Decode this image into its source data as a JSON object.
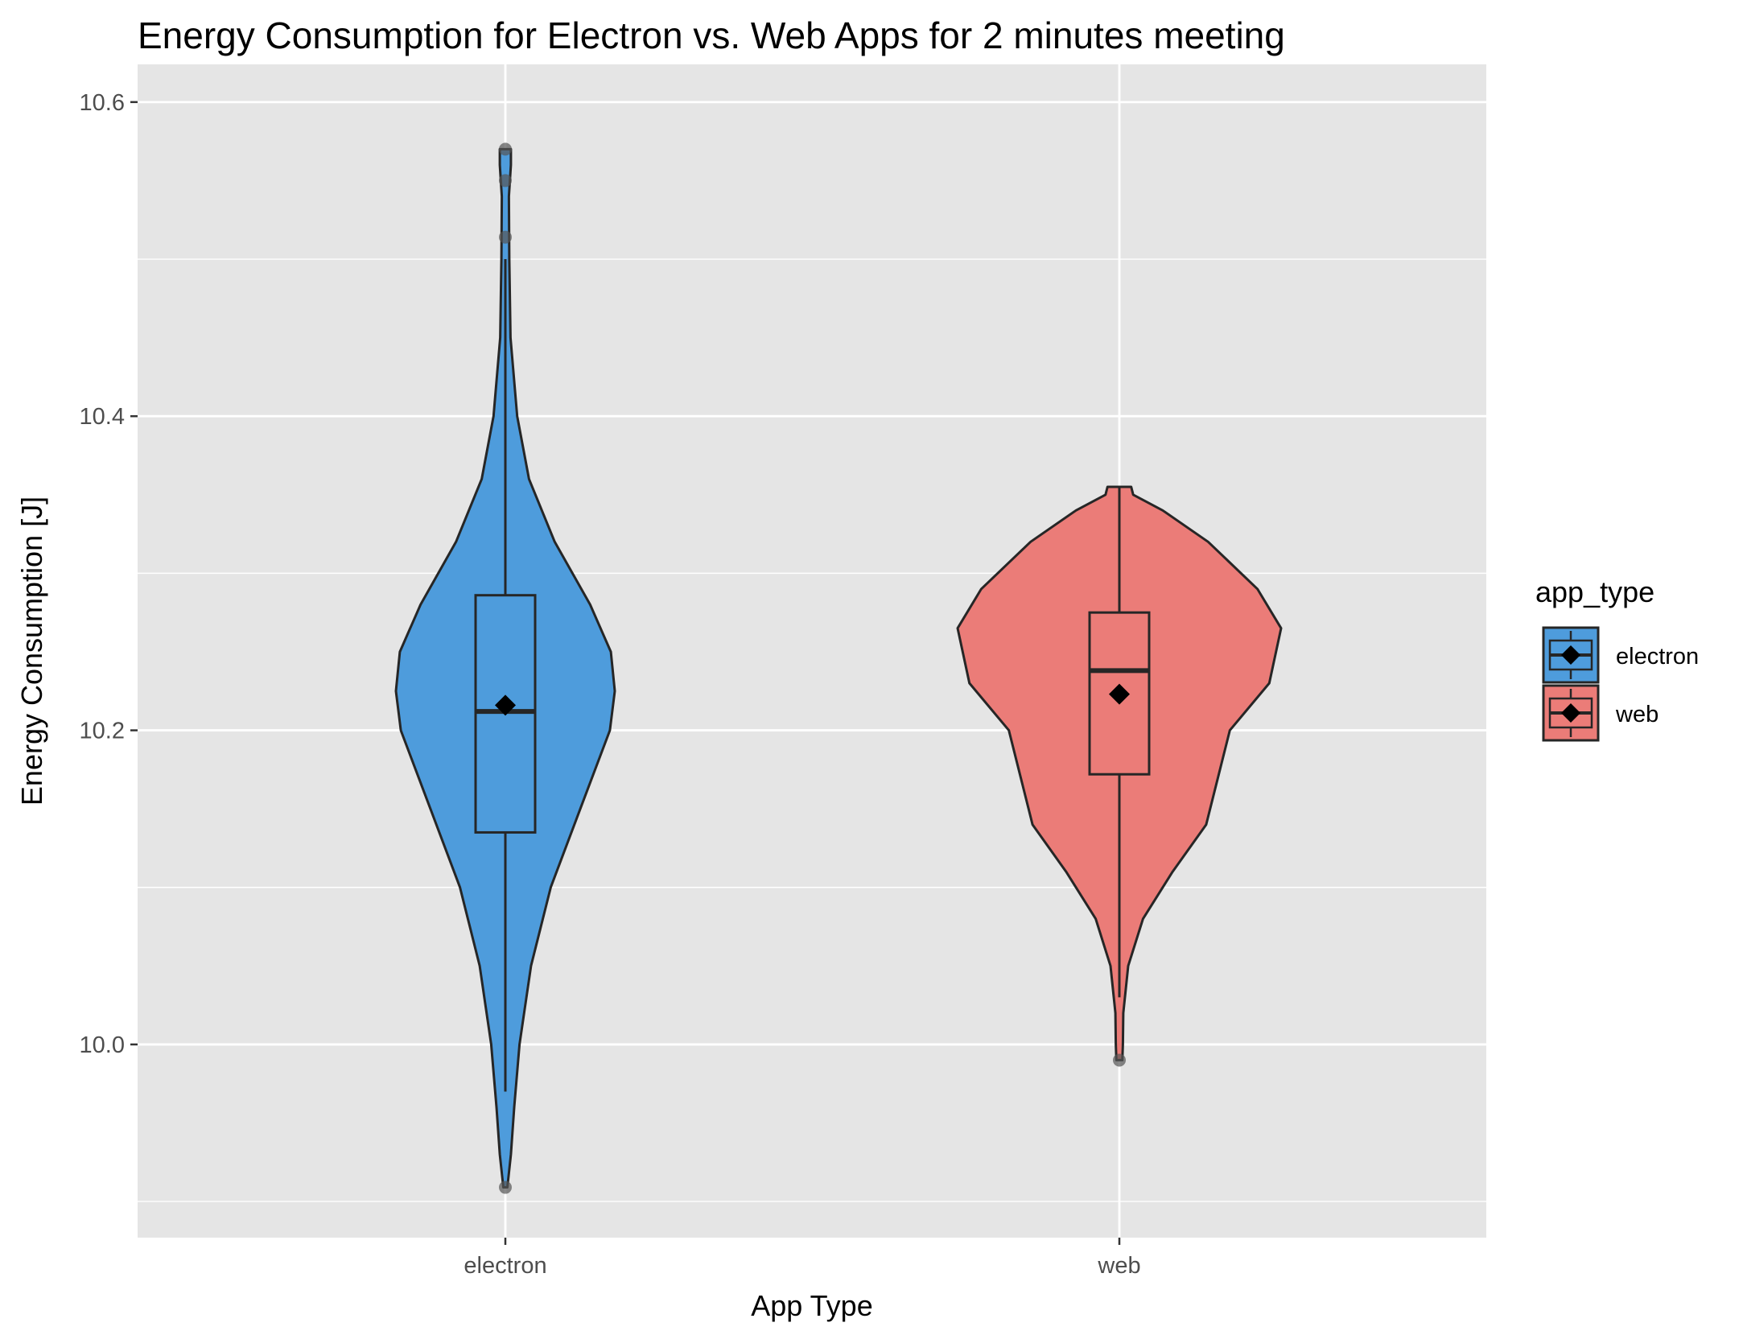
{
  "chart_data": {
    "type": "violin",
    "title": "Energy Consumption for Electron vs. Web Apps for 2 minutes meeting",
    "xlabel": "App Type",
    "ylabel": "Energy Consumption [J]",
    "categories": [
      "electron",
      "web"
    ],
    "y_ticks": [
      10.0,
      10.2,
      10.4,
      10.6
    ],
    "y_tick_labels": [
      "10.0",
      "10.2",
      "10.4",
      "10.6"
    ],
    "ylim": [
      9.877,
      10.624
    ],
    "grid": true,
    "legend": {
      "title": "app_type",
      "position": "right",
      "entries": [
        "electron",
        "web"
      ]
    },
    "colors": {
      "panel_bg": "#e5e5e5",
      "grid": "#ffffff",
      "outline": "#262626",
      "electron": "#4e9cdc",
      "web": "#eb7c78",
      "point": "#555555",
      "mean": "#000000",
      "text": "#000000",
      "tick_text": "#4d4d4d"
    },
    "series": [
      {
        "name": "electron",
        "box": {
          "lower_whisker": 9.97,
          "q1": 10.135,
          "median": 10.212,
          "q3": 10.286,
          "upper_whisker": 10.5
        },
        "mean": 10.216,
        "outliers": [
          9.909,
          10.514,
          10.55,
          10.57
        ],
        "density": [
          [
            9.909,
            0.01
          ],
          [
            9.93,
            0.028
          ],
          [
            9.96,
            0.045
          ],
          [
            10.0,
            0.072
          ],
          [
            10.05,
            0.13
          ],
          [
            10.1,
            0.23
          ],
          [
            10.15,
            0.38
          ],
          [
            10.2,
            0.53
          ],
          [
            10.225,
            0.555
          ],
          [
            10.25,
            0.535
          ],
          [
            10.28,
            0.43
          ],
          [
            10.32,
            0.25
          ],
          [
            10.36,
            0.12
          ],
          [
            10.4,
            0.06
          ],
          [
            10.45,
            0.026
          ],
          [
            10.5,
            0.02
          ],
          [
            10.54,
            0.018
          ],
          [
            10.56,
            0.028
          ],
          [
            10.57,
            0.028
          ]
        ]
      },
      {
        "name": "web",
        "box": {
          "lower_whisker": 10.03,
          "q1": 10.172,
          "median": 10.238,
          "q3": 10.275,
          "upper_whisker": 10.355
        },
        "mean": 10.223,
        "outliers": [
          9.99
        ],
        "density": [
          [
            9.99,
            0.015
          ],
          [
            10.0,
            0.018
          ],
          [
            10.02,
            0.02
          ],
          [
            10.05,
            0.045
          ],
          [
            10.08,
            0.12
          ],
          [
            10.11,
            0.27
          ],
          [
            10.14,
            0.44
          ],
          [
            10.17,
            0.5
          ],
          [
            10.2,
            0.56
          ],
          [
            10.23,
            0.76
          ],
          [
            10.265,
            0.82
          ],
          [
            10.29,
            0.7
          ],
          [
            10.32,
            0.45
          ],
          [
            10.34,
            0.22
          ],
          [
            10.35,
            0.07
          ],
          [
            10.355,
            0.06
          ]
        ]
      }
    ]
  }
}
